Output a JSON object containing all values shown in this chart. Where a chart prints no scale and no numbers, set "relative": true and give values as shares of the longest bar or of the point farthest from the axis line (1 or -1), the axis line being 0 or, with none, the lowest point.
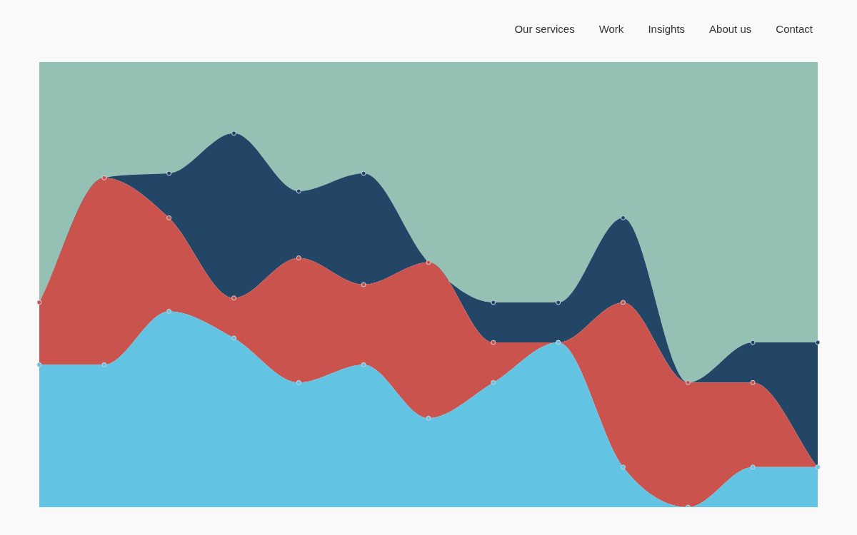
{
  "chart_data": {
    "type": "area",
    "relative": true,
    "stacked": true,
    "legend": false,
    "marker": "circle",
    "categories": [
      null,
      null,
      null,
      null,
      null,
      null,
      null,
      null,
      null,
      null,
      null,
      null,
      null
    ],
    "series": [
      {
        "color": "#62c3e2",
        "values": [
          0.32,
          0.32,
          0.44,
          0.38,
          0.28,
          0.32,
          0.2,
          0.28,
          0.37,
          0.09,
          0,
          0.09,
          0.09
        ]
      },
      {
        "color": "#cb534e",
        "values": [
          0.14,
          0.42,
          0.21,
          0.09,
          0.28,
          0.18,
          0.35,
          0.09,
          0,
          0.37,
          0.28,
          0.19,
          0
        ]
      },
      {
        "color": "#234566",
        "values": [
          0,
          0,
          0.1,
          0.37,
          0.15,
          0.25,
          0,
          0.09,
          0.09,
          0.19,
          0,
          0.09,
          0.28
        ]
      },
      {
        "color": "#95c1b5",
        "marker": "none",
        "values": [
          0.54,
          0.26,
          0.25,
          0.16,
          0.29,
          0.25,
          0.45,
          0.54,
          0.54,
          0.35,
          0.72,
          0.63,
          0.63
        ]
      }
    ],
    "annotations": [
      "Our services",
      "Work",
      "Insights",
      "About us",
      "Contact"
    ]
  }
}
